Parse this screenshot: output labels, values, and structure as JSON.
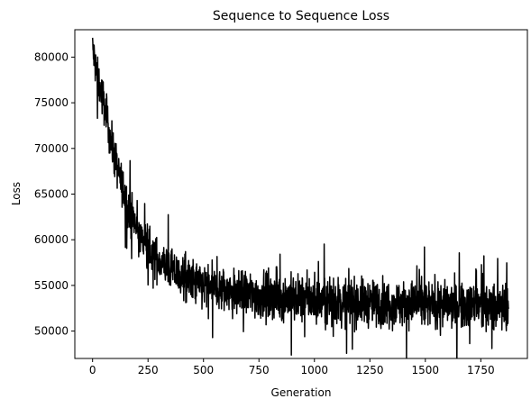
{
  "chart_data": {
    "type": "line",
    "title": "Sequence to Sequence Loss",
    "xlabel": "Generation",
    "ylabel": "Loss",
    "xlim": [
      -80,
      1960
    ],
    "ylim": [
      47000,
      83000
    ],
    "xticks": [
      0,
      250,
      500,
      750,
      1000,
      1250,
      1500,
      1750
    ],
    "yticks": [
      50000,
      55000,
      60000,
      65000,
      70000,
      75000,
      80000
    ],
    "grid": false,
    "legend": "none",
    "line_color": "#000000",
    "series": [
      {
        "x": [
          0,
          10,
          20,
          30,
          40,
          50,
          60,
          70,
          80,
          90,
          100,
          120,
          140,
          160,
          180,
          200,
          225,
          250,
          275,
          300,
          325,
          350,
          375,
          400,
          450,
          500,
          550,
          600,
          650,
          700,
          750,
          800,
          850,
          900,
          950,
          1000,
          1050,
          1100,
          1150,
          1200,
          1250,
          1300,
          1350,
          1400,
          1450,
          1500,
          1550,
          1600,
          1650,
          1700,
          1750,
          1800,
          1850,
          1875
        ],
        "values": [
          81000,
          79500,
          78000,
          77000,
          76000,
          75000,
          73800,
          72500,
          71200,
          70000,
          69000,
          67000,
          65300,
          63800,
          62300,
          61000,
          60000,
          59000,
          58300,
          57700,
          57200,
          56800,
          56300,
          55900,
          55300,
          54900,
          54600,
          54300,
          54100,
          54000,
          53900,
          53800,
          53700,
          53600,
          53500,
          53400,
          53300,
          53250,
          53200,
          53150,
          53100,
          53050,
          53000,
          53000,
          52950,
          52900,
          52900,
          52850,
          52800,
          52800,
          52750,
          52700,
          52700,
          52700
        ]
      }
    ]
  }
}
